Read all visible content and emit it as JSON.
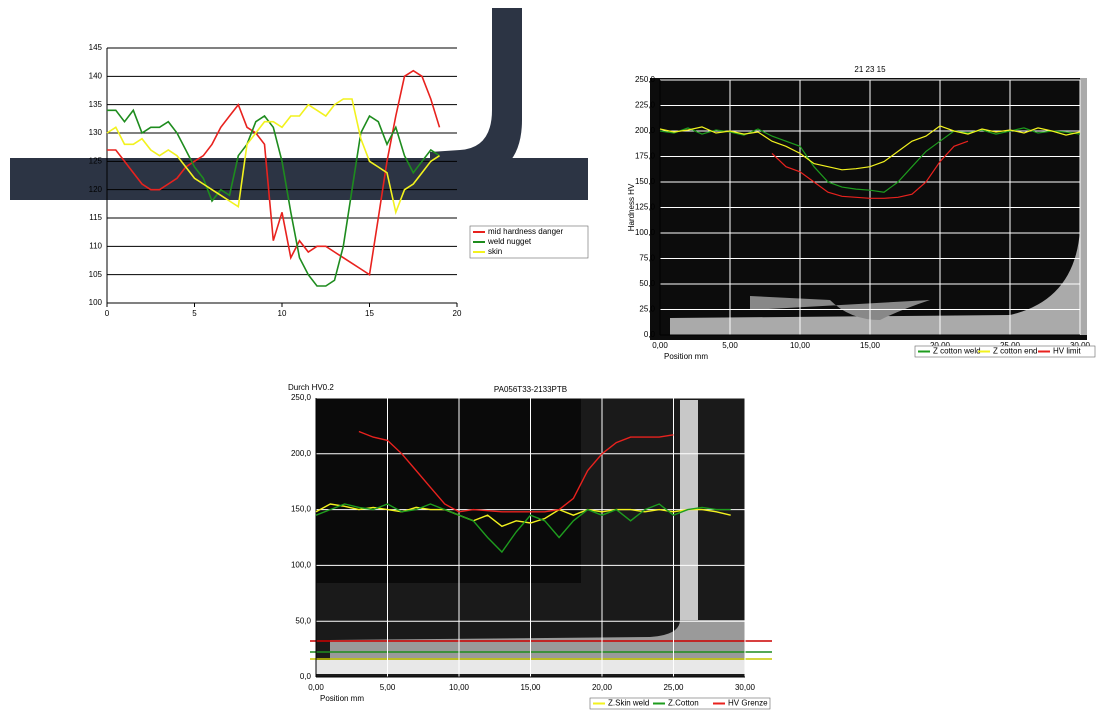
{
  "chart_data": [
    {
      "type": "line",
      "x": [
        0,
        0.5,
        1,
        1.5,
        2,
        2.5,
        3,
        3.5,
        4,
        4.5,
        5,
        5.5,
        6,
        6.5,
        7,
        7.5,
        8,
        8.5,
        9,
        9.5,
        10,
        10.5,
        11,
        11.5,
        12,
        12.5,
        13,
        13.5,
        14,
        14.5,
        15,
        15.5,
        16,
        16.5,
        17,
        17.5,
        18,
        18.5,
        19
      ],
      "series": [
        {
          "name": "mid hardness danger",
          "color": "#e8221e",
          "values": [
            127,
            127,
            125,
            123,
            121,
            120,
            120,
            121,
            122,
            124,
            125,
            126,
            128,
            131,
            133,
            135,
            131,
            130,
            128,
            111,
            116,
            108,
            111,
            109,
            110,
            110,
            109,
            108,
            107,
            106,
            105,
            115,
            125,
            133,
            140,
            141,
            140,
            136,
            131
          ]
        },
        {
          "name": "weld nugget",
          "color": "#1e8c1e",
          "values": [
            134,
            134,
            132,
            134,
            130,
            131,
            131,
            132,
            130,
            127,
            124,
            122,
            118,
            120,
            119,
            126,
            128,
            132,
            133,
            131,
            125,
            116,
            108,
            105,
            103,
            103,
            104,
            110,
            120,
            130,
            133,
            132,
            128,
            131,
            126,
            123,
            125,
            127,
            126
          ]
        },
        {
          "name": "skin",
          "color": "#f2f21e",
          "values": [
            130,
            131,
            128,
            128,
            129,
            127,
            126,
            127,
            126,
            124,
            122,
            121,
            120,
            119,
            118,
            117,
            128,
            130,
            132,
            132,
            131,
            133,
            133,
            135,
            134,
            133,
            135,
            136,
            136,
            129,
            125,
            124,
            123,
            116,
            120,
            121,
            123,
            125,
            126
          ]
        }
      ],
      "xlim": [
        0,
        20
      ],
      "xticks": [
        0,
        5,
        10,
        15,
        20
      ],
      "ylim": [
        100,
        145
      ],
      "yticks": [
        100,
        105,
        110,
        115,
        120,
        125,
        130,
        135,
        140,
        145
      ],
      "grid": true
    },
    {
      "type": "line",
      "title": "21 23 15",
      "y_label": "Hardness HV",
      "x_label": "Position mm",
      "x": [
        0,
        1,
        2,
        3,
        4,
        5,
        6,
        7,
        8,
        9,
        10,
        11,
        12,
        13,
        14,
        15,
        16,
        17,
        18,
        19,
        20,
        21,
        22,
        23,
        24,
        25,
        26,
        27,
        28,
        29,
        30
      ],
      "series": [
        {
          "name": "Z cotton weld",
          "color": "#1e9c1e",
          "values": [
            200,
            198,
            203,
            197,
            201,
            199,
            196,
            202,
            195,
            190,
            185,
            165,
            150,
            145,
            143,
            142,
            140,
            150,
            165,
            180,
            190,
            200,
            198,
            201,
            197,
            200,
            203,
            198,
            200,
            199,
            197
          ]
        },
        {
          "name": "Z cotton end",
          "color": "#f2f21e",
          "values": [
            202,
            199,
            201,
            204,
            198,
            200,
            197,
            199,
            190,
            185,
            178,
            168,
            165,
            162,
            163,
            165,
            170,
            180,
            190,
            195,
            205,
            200,
            197,
            202,
            199,
            201,
            198,
            203,
            200,
            196,
            199
          ]
        },
        {
          "name": "HV limit",
          "color": "#e8221e",
          "values": [
            null,
            null,
            null,
            null,
            null,
            null,
            null,
            null,
            178,
            165,
            160,
            150,
            140,
            136,
            135,
            134,
            134,
            135,
            138,
            150,
            170,
            185,
            190,
            null,
            null,
            null,
            null,
            null,
            null,
            null,
            null
          ]
        }
      ],
      "xlim": [
        0,
        30
      ],
      "xticks": [
        {
          "value": 0,
          "label": "0,00"
        },
        {
          "value": 5,
          "label": "5,00"
        },
        {
          "value": 10,
          "label": "10,00"
        },
        {
          "value": 15,
          "label": "15,00"
        },
        {
          "value": 20,
          "label": "20,00"
        },
        {
          "value": 25,
          "label": "25,00"
        },
        {
          "value": 30,
          "label": "30,00"
        }
      ],
      "ylim": [
        0,
        250
      ],
      "yticks": [
        {
          "value": 0,
          "label": "0,0"
        },
        {
          "value": 25,
          "label": "25,0"
        },
        {
          "value": 50,
          "label": "50,0"
        },
        {
          "value": 75,
          "label": "75,0"
        },
        {
          "value": 100,
          "label": "100,0"
        },
        {
          "value": 125,
          "label": "125,0"
        },
        {
          "value": 150,
          "label": "150,0"
        },
        {
          "value": 175,
          "label": "175,0"
        },
        {
          "value": 200,
          "label": "200,0"
        },
        {
          "value": 225,
          "label": "225,0"
        },
        {
          "value": 250,
          "label": "250,0"
        }
      ],
      "grid": true
    },
    {
      "type": "line",
      "title": "PA056T33-2133PTB",
      "y_label": "Durch HV0.2",
      "x_label": "Position mm",
      "x": [
        0,
        1,
        2,
        3,
        4,
        5,
        6,
        7,
        8,
        9,
        10,
        11,
        12,
        13,
        14,
        15,
        16,
        17,
        18,
        19,
        20,
        21,
        22,
        23,
        24,
        25,
        26,
        27,
        28,
        29,
        30
      ],
      "series": [
        {
          "name": "Z.Skin weld",
          "color": "#f2f21e",
          "values": [
            148,
            155,
            153,
            150,
            152,
            150,
            148,
            152,
            150,
            150,
            145,
            140,
            145,
            135,
            140,
            138,
            142,
            150,
            145,
            150,
            148,
            150,
            150,
            148,
            150,
            148,
            150,
            150,
            148,
            145,
            null
          ]
        },
        {
          "name": "Z.Cotton",
          "color": "#1e9c1e",
          "values": [
            145,
            150,
            155,
            152,
            150,
            155,
            148,
            150,
            155,
            150,
            145,
            140,
            125,
            112,
            130,
            145,
            140,
            125,
            140,
            150,
            145,
            150,
            140,
            150,
            155,
            145,
            150,
            152,
            150,
            150,
            null
          ]
        },
        {
          "name": "HV Grenze",
          "color": "#e8221e",
          "values": [
            null,
            null,
            null,
            220,
            215,
            212,
            200,
            185,
            170,
            155,
            148,
            150,
            149,
            148,
            148,
            148,
            148,
            150,
            160,
            185,
            200,
            210,
            215,
            215,
            215,
            217,
            null,
            null,
            null,
            null,
            null
          ]
        }
      ],
      "xlim": [
        0,
        30
      ],
      "xticks": [
        {
          "value": 0,
          "label": "0,00"
        },
        {
          "value": 5,
          "label": "5,00"
        },
        {
          "value": 10,
          "label": "10,00"
        },
        {
          "value": 15,
          "label": "15,00"
        },
        {
          "value": 20,
          "label": "20,00"
        },
        {
          "value": 25,
          "label": "25,00"
        },
        {
          "value": 30,
          "label": "30,00"
        }
      ],
      "ylim": [
        0,
        250
      ],
      "yticks": [
        {
          "value": 0,
          "label": "0,0"
        },
        {
          "value": 50,
          "label": "50,0"
        },
        {
          "value": 100,
          "label": "100,0"
        },
        {
          "value": 150,
          "label": "150,0"
        },
        {
          "value": 200,
          "label": "200,0"
        },
        {
          "value": 250,
          "label": "250,0"
        }
      ],
      "grid": true
    }
  ]
}
